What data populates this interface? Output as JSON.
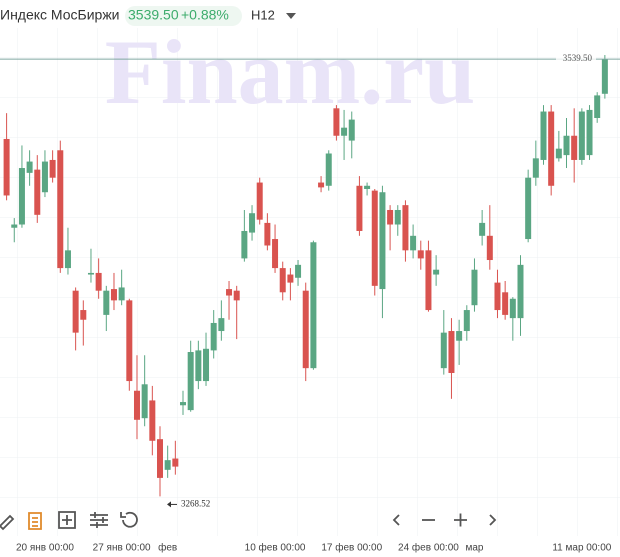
{
  "chart_data": {
    "type": "candlestick",
    "title": "Индекс МосБиржи",
    "change": "+0.88%",
    "interval": "H12",
    "watermark": "Finam.ru",
    "up_color": "#5aa683",
    "down_color": "#d9534f",
    "ylim": [
      3244,
      3560
    ],
    "last_price": {
      "value": 3539.5,
      "label": "3539.50"
    },
    "low_marker": {
      "value": 3268.52,
      "label": "3268.52"
    },
    "categories": [
      null,
      null,
      null,
      null,
      null,
      "20 янв 00:00",
      null,
      null,
      null,
      null,
      null,
      null,
      null,
      null,
      null,
      "27 янв 00:00",
      null,
      null,
      null,
      null,
      null,
      "фев",
      null,
      null,
      null,
      null,
      null,
      null,
      null,
      null,
      null,
      null,
      null,
      null,
      null,
      "10 фев 00:00",
      null,
      null,
      null,
      null,
      null,
      null,
      null,
      null,
      null,
      "17 фев 00:00",
      null,
      null,
      null,
      null,
      null,
      null,
      null,
      null,
      null,
      "24 фев 00:00",
      null,
      null,
      null,
      null,
      null,
      "мар",
      null,
      null,
      null,
      null,
      null,
      null,
      null,
      null,
      null,
      null,
      null,
      null,
      null,
      "11 мар 00:00",
      null,
      null,
      null
    ],
    "open": [
      3490,
      3435,
      3437,
      3469,
      3471,
      3457,
      3477,
      3483,
      3410,
      3396,
      3384,
      3406,
      3407,
      3381,
      3397,
      3390,
      3390,
      3334,
      3317,
      3328,
      3304,
      3285,
      3292,
      3325,
      3322,
      3340,
      3340,
      3359,
      3371,
      3397,
      3396,
      3416,
      3432,
      3463,
      3438,
      3428,
      3410,
      3406,
      3404,
      3396,
      3348,
      3463,
      3461,
      3509,
      3492,
      3489,
      3461,
      3459,
      3458,
      3397,
      3446,
      3437,
      3449,
      3421,
      3421,
      3421,
      3406,
      3348,
      3371,
      3365,
      3371,
      3387,
      3430,
      3430,
      3401,
      3395,
      3379,
      3379,
      3428,
      3466,
      3477,
      3507,
      3478,
      3480,
      3492,
      3477,
      3480,
      3503,
      3518
    ],
    "high": [
      3506,
      3441,
      3486,
      3483,
      3480,
      3483,
      3483,
      3489,
      3435,
      3398,
      3390,
      3422,
      3416,
      3399,
      3407,
      3409,
      3391,
      3356,
      3356,
      3337,
      3312,
      3300,
      3303,
      3334,
      3365,
      3365,
      3370,
      3384,
      3390,
      3402,
      3399,
      3446,
      3449,
      3466,
      3444,
      3437,
      3414,
      3410,
      3415,
      3401,
      3427,
      3467,
      3483,
      3511,
      3508,
      3507,
      3467,
      3463,
      3459,
      3461,
      3449,
      3449,
      3452,
      3437,
      3427,
      3427,
      3418,
      3384,
      3379,
      3378,
      3387,
      3416,
      3446,
      3449,
      3409,
      3402,
      3392,
      3418,
      3471,
      3489,
      3511,
      3511,
      3495,
      3503,
      3509,
      3509,
      3511,
      3519,
      3542
    ],
    "low": [
      3452,
      3426,
      3435,
      3461,
      3438,
      3454,
      3463,
      3407,
      3406,
      3359,
      3362,
      3401,
      3391,
      3371,
      3384,
      3387,
      3334,
      3304,
      3312,
      3294,
      3268.52,
      3280,
      3282,
      3319,
      3321,
      3335,
      3337,
      3354,
      3365,
      3378,
      3366,
      3414,
      3427,
      3437,
      3421,
      3407,
      3390,
      3390,
      3399,
      3340,
      3347,
      3457,
      3458,
      3489,
      3477,
      3478,
      3430,
      3455,
      3393,
      3379,
      3421,
      3430,
      3414,
      3416,
      3409,
      3383,
      3399,
      3344,
      3329,
      3350,
      3365,
      3383,
      3424,
      3409,
      3379,
      3378,
      3365,
      3368,
      3426,
      3461,
      3474,
      3455,
      3476,
      3472,
      3463,
      3474,
      3477,
      3500,
      3515
    ],
    "close": [
      3455,
      3437,
      3472,
      3476,
      3443,
      3476,
      3466,
      3410,
      3421,
      3370,
      3378,
      3407,
      3396,
      3396,
      3390,
      3398,
      3340,
      3316,
      3338,
      3303,
      3280,
      3291,
      3287,
      3327,
      3358,
      3359,
      3360,
      3376,
      3379,
      3393,
      3390,
      3433,
      3444,
      3440,
      3424,
      3410,
      3395,
      3401,
      3412,
      3348,
      3426,
      3460,
      3481,
      3492,
      3497,
      3502,
      3433,
      3461,
      3399,
      3457,
      3437,
      3446,
      3421,
      3430,
      3416,
      3384,
      3409,
      3370,
      3345,
      3371,
      3384,
      3409,
      3438,
      3415,
      3384,
      3381,
      3391,
      3412,
      3466,
      3478,
      3507,
      3461,
      3484,
      3492,
      3477,
      3507,
      3508,
      3517,
      3539.5
    ]
  }
}
